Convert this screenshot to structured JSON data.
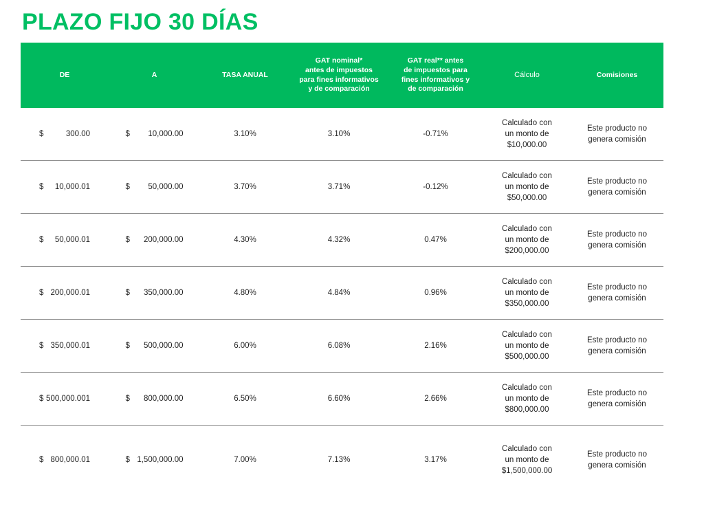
{
  "title": "PLAZO FIJO 30 DÍAS",
  "colors": {
    "accent_green_header": "#00b95e",
    "accent_green_title": "#00bf63",
    "header_text": "#ffffff",
    "body_text": "#1f1f1f",
    "row_divider": "#8f8f8f"
  },
  "table": {
    "columns": [
      {
        "key": "de",
        "label": "DE"
      },
      {
        "key": "a",
        "label": "A"
      },
      {
        "key": "tasa",
        "label": "TASA ANUAL"
      },
      {
        "key": "gat_nominal",
        "label": "GAT nominal*\nantes de impuestos\npara fines informativos\ny de comparación"
      },
      {
        "key": "gat_real",
        "label": "GAT real** antes\nde impuestos para\nfines informativos y\nde comparación"
      },
      {
        "key": "calculo",
        "label": "Cálculo"
      },
      {
        "key": "comisiones",
        "label": "Comisiones"
      }
    ],
    "rows": [
      {
        "de_symbol": "$",
        "de_amount": "300.00",
        "a_symbol": "$",
        "a_amount": "10,000.00",
        "tasa": "3.10%",
        "gat_nominal": "3.10%",
        "gat_real": "-0.71%",
        "calculo": "Calculado con\nun monto de\n$10,000.00",
        "comisiones": "Este producto no\ngenera comisión"
      },
      {
        "de_symbol": "$",
        "de_amount": "10,000.01",
        "a_symbol": "$",
        "a_amount": "50,000.00",
        "tasa": "3.70%",
        "gat_nominal": "3.71%",
        "gat_real": "-0.12%",
        "calculo": "Calculado con\nun monto de\n$50,000.00",
        "comisiones": "Este producto no\ngenera comisión"
      },
      {
        "de_symbol": "$",
        "de_amount": "50,000.01",
        "a_symbol": "$",
        "a_amount": "200,000.00",
        "tasa": "4.30%",
        "gat_nominal": "4.32%",
        "gat_real": "0.47%",
        "calculo": "Calculado con\nun monto de\n$200,000.00",
        "comisiones": "Este producto no\ngenera comisión"
      },
      {
        "de_symbol": "$",
        "de_amount": "200,000.01",
        "a_symbol": "$",
        "a_amount": "350,000.00",
        "tasa": "4.80%",
        "gat_nominal": "4.84%",
        "gat_real": "0.96%",
        "calculo": "Calculado con\nun monto de\n$350,000.00",
        "comisiones": "Este producto no\ngenera comisión"
      },
      {
        "de_symbol": "$",
        "de_amount": "350,000.01",
        "a_symbol": "$",
        "a_amount": "500,000.00",
        "tasa": "6.00%",
        "gat_nominal": "6.08%",
        "gat_real": "2.16%",
        "calculo": "Calculado con\nun monto de\n$500,000.00",
        "comisiones": "Este producto no\ngenera comisión"
      },
      {
        "de_symbol": "$",
        "de_amount": "500,000.001",
        "a_symbol": "$",
        "a_amount": "800,000.00",
        "tasa": "6.50%",
        "gat_nominal": "6.60%",
        "gat_real": "2.66%",
        "calculo": "Calculado con\nun monto de\n$800,000.00",
        "comisiones": "Este producto no\ngenera comisión"
      },
      {
        "de_symbol": "$",
        "de_amount": "800,000.01",
        "a_symbol": "$",
        "a_amount": "1,500,000.00",
        "tasa": "7.00%",
        "gat_nominal": "7.13%",
        "gat_real": "3.17%",
        "calculo": "Calculado con\nun monto de\n$1,500,000.00",
        "comisiones": "Este producto no\ngenera comisión"
      }
    ]
  }
}
